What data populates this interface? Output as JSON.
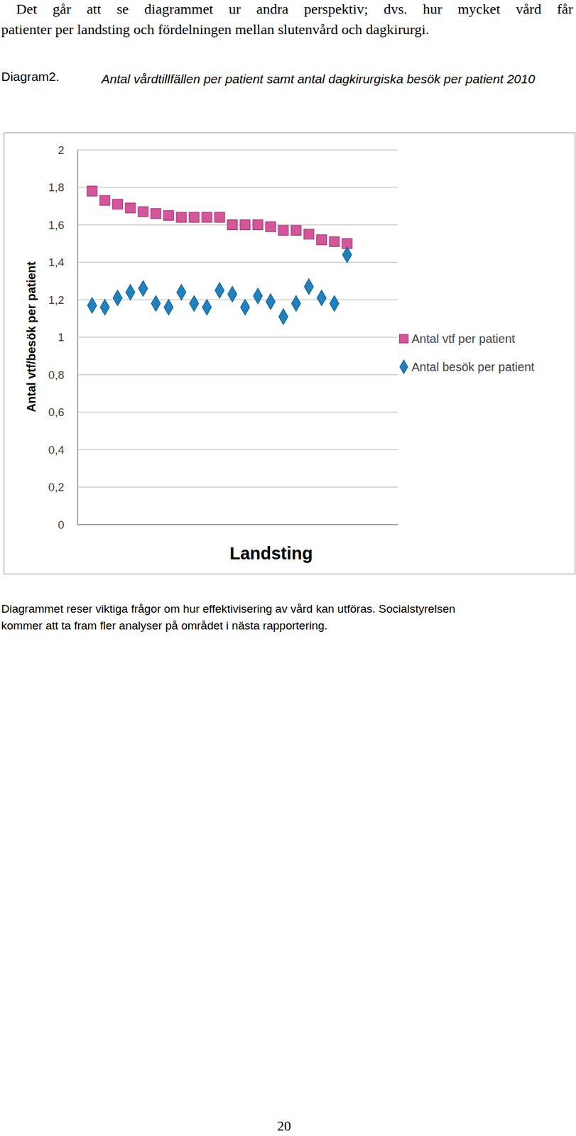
{
  "text_before": [
    "Det går att se diagrammet ur andra perspektiv; dvs. hur mycket vård får",
    "patienter per landsting och fördelningen mellan slutenvård och dagkirurgi."
  ],
  "caption_label": "Diagram2.",
  "chart_data": {
    "type": "scatter",
    "title": "Antal vårdtillfällen per patient samt antal dagkirurgiska besök per patient 2010",
    "x_label": "Landsting",
    "y_label": "Antal vtf/besök per patient",
    "categories": [
      null,
      null,
      null,
      null,
      null,
      null,
      null,
      null,
      null,
      null,
      null,
      null,
      null,
      null,
      null,
      null,
      null,
      null,
      null,
      null,
      null
    ],
    "series": [
      {
        "name": "Antal vtf per patient",
        "color": "#d6559a",
        "marker": "square",
        "values": [
          1.78,
          1.73,
          1.71,
          1.69,
          1.67,
          1.66,
          1.65,
          1.64,
          1.64,
          1.64,
          1.64,
          1.6,
          1.6,
          1.6,
          1.59,
          1.57,
          1.57,
          1.55,
          1.52,
          1.51,
          1.5
        ]
      },
      {
        "name": "Antal besök per patient",
        "color": "#1f82c0",
        "marker": "diamond",
        "values": [
          1.17,
          1.16,
          1.21,
          1.24,
          1.26,
          1.18,
          1.16,
          1.24,
          1.18,
          1.16,
          1.25,
          1.23,
          1.16,
          1.22,
          1.19,
          1.11,
          1.18,
          1.27,
          1.21,
          1.18,
          1.44
        ]
      }
    ],
    "ylim": [
      0,
      2
    ],
    "yticks": [
      0,
      {
        "value": 0.2,
        "label": "0,2"
      },
      {
        "value": 0.4,
        "label": "0,4"
      },
      {
        "value": 0.6,
        "label": "0,6"
      },
      {
        "value": 0.8,
        "label": "0,8"
      },
      1,
      {
        "value": 1.2,
        "label": "1,2"
      },
      {
        "value": 1.4,
        "label": "1,4"
      },
      {
        "value": 1.6,
        "label": "1,6"
      },
      {
        "value": 1.8,
        "label": "1,8"
      },
      2
    ],
    "grid": true,
    "legend": "right",
    "tick_labels": "y"
  },
  "text_after": [
    "Diagrammet reser viktiga frågor om hur effektivisering av vård kan utföras. Socialstyrelsen",
    "kommer att ta fram fler analyser på området i nästa rapportering."
  ],
  "page_number": "20"
}
